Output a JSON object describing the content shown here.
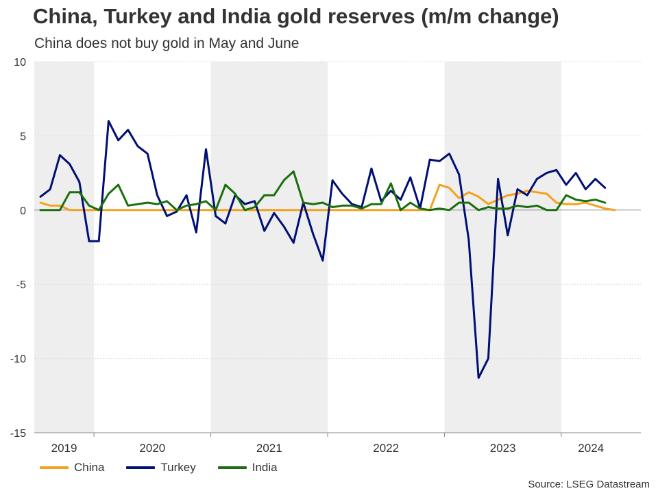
{
  "header": {
    "title": "China, Turkey and India gold reserves (m/m change)",
    "subtitle": "China does not buy gold in May and June"
  },
  "source": "Source: LSEG Datastream",
  "chart_data": {
    "type": "line",
    "title": "China, Turkey and India gold reserves (m/m change)",
    "subtitle": "China does not buy gold in May and June",
    "xlabel": "",
    "ylabel": "",
    "ylim": [
      -15,
      10
    ],
    "yticks": [
      10,
      5,
      0,
      -5,
      -10,
      -15
    ],
    "ytick_labels": [
      "10",
      "5",
      "0",
      "-5",
      "-10",
      "-15"
    ],
    "x_start": "2019-07",
    "x_end": "2024-06",
    "year_labels": [
      "2019",
      "2020",
      "2021",
      "2022",
      "2023",
      "2024"
    ],
    "shaded_years": [
      "2019",
      "2021",
      "2023"
    ],
    "grid": true,
    "legend_position": "bottom-left",
    "colors": {
      "shade": "#eeeeee",
      "grid": "#dddddd",
      "axis": "#888888"
    },
    "series": [
      {
        "name": "China",
        "color": "#f5a01e",
        "values": [
          0.5,
          0.3,
          0.3,
          0.0,
          0.0,
          0.0,
          0.0,
          0.0,
          0.0,
          0.0,
          0.0,
          0.0,
          0.0,
          0.0,
          0.0,
          0.0,
          0.0,
          0.0,
          0.0,
          0.0,
          0.0,
          0.0,
          0.0,
          0.0,
          0.0,
          0.0,
          0.0,
          0.0,
          0.0,
          0.0,
          0.0,
          0.0,
          0.0,
          0.0,
          0.0,
          0.0,
          0.0,
          0.0,
          0.0,
          0.0,
          0.0,
          1.7,
          1.5,
          0.8,
          1.2,
          0.9,
          0.4,
          0.7,
          1.0,
          1.1,
          1.3,
          1.2,
          1.1,
          0.5,
          0.4,
          0.4,
          0.5,
          0.3,
          0.1,
          0.0
        ]
      },
      {
        "name": "Turkey",
        "color": "#000f73",
        "values": [
          0.9,
          1.4,
          3.7,
          3.1,
          1.9,
          -2.1,
          -2.1,
          6.0,
          4.7,
          5.4,
          4.3,
          3.8,
          1.0,
          -0.4,
          -0.1,
          1.0,
          -1.5,
          4.1,
          -0.4,
          -0.9,
          1.0,
          0.4,
          0.6,
          -1.4,
          -0.2,
          -1.1,
          -2.2,
          0.5,
          -1.6,
          -3.4,
          2.0,
          1.1,
          0.4,
          0.2,
          2.8,
          0.6,
          1.3,
          0.7,
          2.2,
          0.1,
          3.4,
          3.3,
          3.8,
          2.4,
          -2.0,
          -11.3,
          -10.0,
          2.1,
          -1.7,
          1.4,
          1.0,
          2.1,
          2.5,
          2.7,
          1.7,
          2.5,
          1.4,
          2.1,
          1.5
        ]
      },
      {
        "name": "India",
        "color": "#1a6e0e",
        "values": [
          0.0,
          0.0,
          0.0,
          1.2,
          1.2,
          0.3,
          0.0,
          1.1,
          1.7,
          0.3,
          0.4,
          0.5,
          0.4,
          0.6,
          0.0,
          0.3,
          0.4,
          0.6,
          0.0,
          1.7,
          1.1,
          0.0,
          0.2,
          1.0,
          1.0,
          2.0,
          2.6,
          0.5,
          0.4,
          0.5,
          0.2,
          0.3,
          0.3,
          0.1,
          0.4,
          0.4,
          1.8,
          0.0,
          0.5,
          0.1,
          0.0,
          0.1,
          0.0,
          0.5,
          0.5,
          0.0,
          0.2,
          0.1,
          0.1,
          0.3,
          0.2,
          0.3,
          0.0,
          0.0,
          1.0,
          0.7,
          0.6,
          0.7,
          0.5
        ]
      }
    ]
  }
}
